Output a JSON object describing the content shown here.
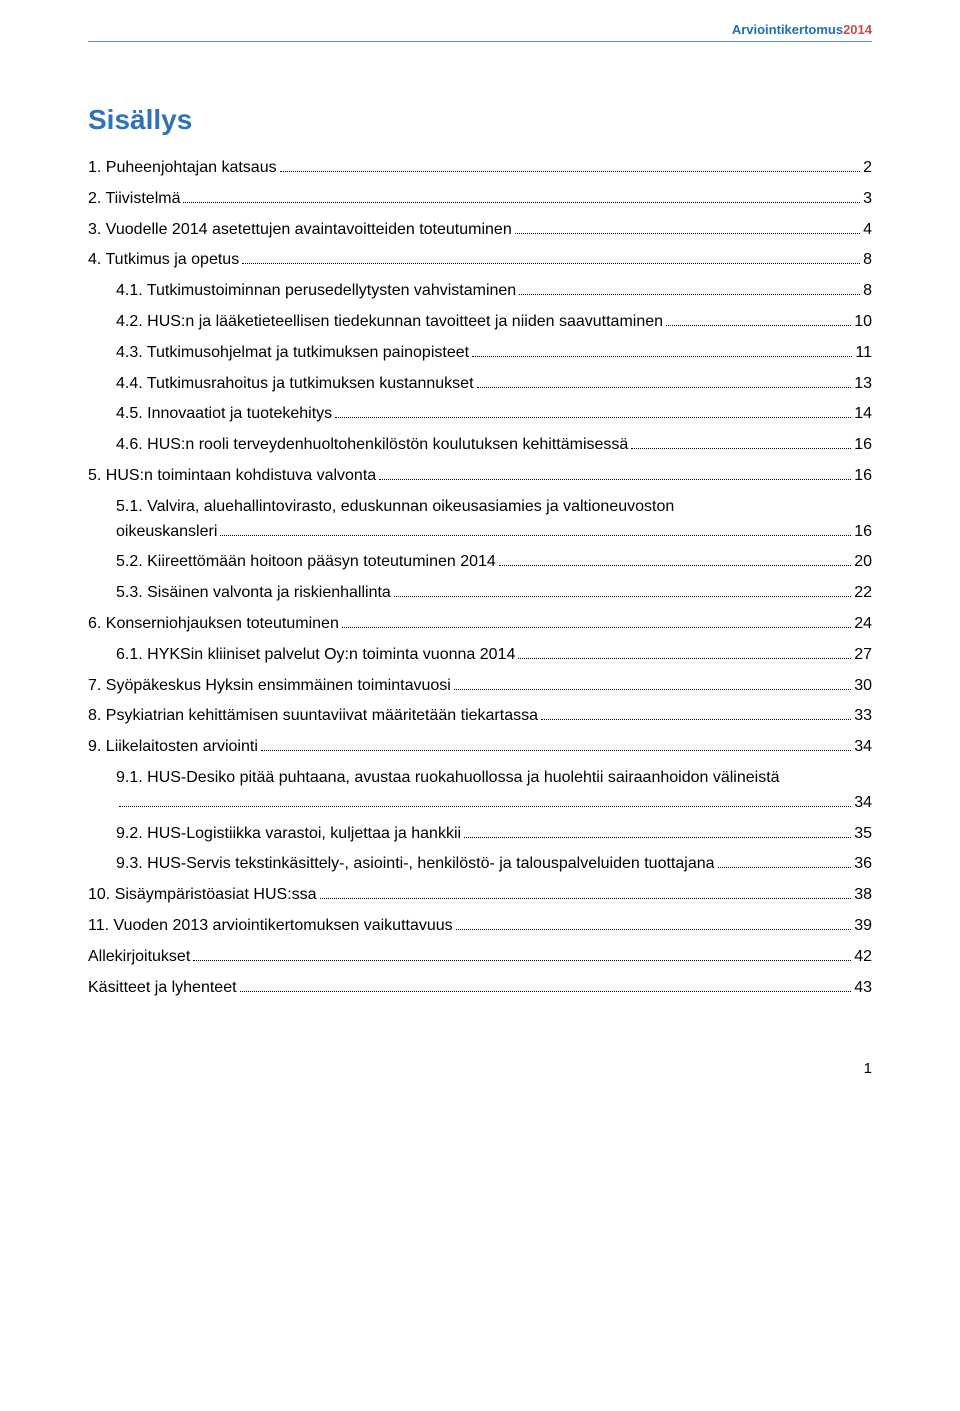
{
  "header": {
    "title_part1": "Arviointikertomus",
    "title_part2": "2014",
    "color1": "#1f6fb3",
    "color2": "#c0504d",
    "rule_color": "#5b8db8"
  },
  "title": {
    "text": "Sisällys",
    "color": "#2e74b5"
  },
  "toc": [
    {
      "level": 1,
      "label": "1. Puheenjohtajan katsaus",
      "page": "2"
    },
    {
      "level": 1,
      "label": "2. Tiivistelmä",
      "page": "3"
    },
    {
      "level": 1,
      "label": "3. Vuodelle 2014 asetettujen avaintavoitteiden toteutuminen",
      "page": "4"
    },
    {
      "level": 1,
      "label": "4. Tutkimus ja opetus",
      "page": "8"
    },
    {
      "level": 2,
      "label": "4.1. Tutkimustoiminnan perusedellytysten vahvistaminen",
      "page": "8"
    },
    {
      "level": 2,
      "label": "4.2. HUS:n ja lääketieteellisen tiedekunnan tavoitteet ja niiden saavuttaminen",
      "page": "10"
    },
    {
      "level": 2,
      "label": "4.3. Tutkimusohjelmat ja tutkimuksen painopisteet",
      "page": "11"
    },
    {
      "level": 2,
      "label": "4.4. Tutkimusrahoitus ja tutkimuksen kustannukset",
      "page": "13"
    },
    {
      "level": 2,
      "label": "4.5. Innovaatiot ja tuotekehitys",
      "page": "14"
    },
    {
      "level": 2,
      "label": "4.6. HUS:n rooli terveydenhuoltohenkilöstön koulutuksen kehittämisessä",
      "page": "16"
    },
    {
      "level": 1,
      "label": "5. HUS:n toimintaan kohdistuva valvonta",
      "page": "16"
    },
    {
      "level": 2,
      "label": "5.1. Valvira, aluehallintovirasto, eduskunnan oikeusasiamies ja valtioneuvoston",
      "wrap": "oikeuskansleri",
      "page": "16"
    },
    {
      "level": 2,
      "label": "5.2. Kiireettömään hoitoon pääsyn toteutuminen 2014",
      "page": "20"
    },
    {
      "level": 2,
      "label": "5.3. Sisäinen valvonta ja riskienhallinta",
      "page": "22"
    },
    {
      "level": 1,
      "label": "6. Konserniohjauksen toteutuminen",
      "page": "24"
    },
    {
      "level": 2,
      "label": "6.1. HYKSin kliiniset palvelut Oy:n toiminta vuonna 2014",
      "page": "27"
    },
    {
      "level": 1,
      "label": "7. Syöpäkeskus Hyksin ensimmäinen toimintavuosi",
      "page": "30"
    },
    {
      "level": 1,
      "label": "8. Psykiatrian kehittämisen suuntaviivat määritetään tiekartassa",
      "page": "33"
    },
    {
      "level": 1,
      "label": "9. Liikelaitosten arviointi",
      "page": "34"
    },
    {
      "level": 2,
      "label": "9.1. HUS-Desiko pitää puhtaana, avustaa ruokahuollossa ja huolehtii sairaanhoidon välineistä",
      "wrap": "",
      "page": "34"
    },
    {
      "level": 2,
      "label": "9.2. HUS-Logistiikka varastoi, kuljettaa ja hankkii",
      "page": "35"
    },
    {
      "level": 2,
      "label": "9.3. HUS-Servis tekstinkäsittely-, asiointi-, henkilöstö- ja talouspalveluiden tuottajana",
      "page": "36"
    },
    {
      "level": 1,
      "label": "10. Sisäympäristöasiat HUS:ssa",
      "page": "38"
    },
    {
      "level": 1,
      "label": "11. Vuoden 2013 arviointikertomuksen vaikuttavuus",
      "page": "39"
    },
    {
      "level": 1,
      "label": "Allekirjoitukset",
      "page": "42"
    },
    {
      "level": 1,
      "label": "Käsitteet ja lyhenteet",
      "page": "43"
    }
  ],
  "page_number": "1"
}
